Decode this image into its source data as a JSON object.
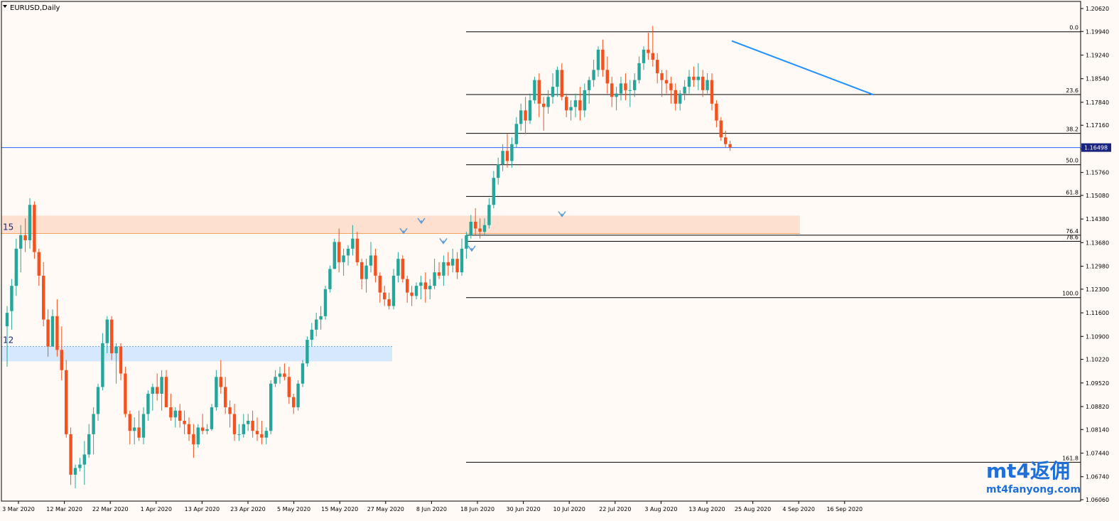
{
  "chart_title": "EURUSD,Daily",
  "watermark": {
    "brand": "mt4返佣",
    "url": "mt4fanyong.com"
  },
  "colors": {
    "background": "#fffaf5",
    "bull": "#26a69a",
    "bear": "#f4511e",
    "fib": "#000000",
    "trendline": "#1e90ff",
    "price_line": "#2962ff",
    "price_label_bg": "#1a237e",
    "zone_supply": "#fde0cf",
    "zone_demand": "#d6e8fb",
    "zone_supply_line": "#f4a460",
    "zone_demand_line": "#6fa8dc",
    "fractal": "#5b9bd5",
    "axis": "#000000"
  },
  "chart_data": {
    "type": "candlestick",
    "symbol": "EURUSD",
    "timeframe": "Daily",
    "ylim": [
      1.0604,
      1.2076
    ],
    "y_ticks": [
      "1.20620",
      "1.19940",
      "1.19240",
      "1.18540",
      "1.17840",
      "1.17160",
      "1.16460",
      "1.15760",
      "1.15080",
      "1.14380",
      "1.13680",
      "1.12980",
      "1.12300",
      "1.11600",
      "1.10900",
      "1.10220",
      "1.09520",
      "1.08820",
      "1.08140",
      "1.07440",
      "1.06740",
      "1.06060"
    ],
    "x_ticks": [
      "3 Mar 2020",
      "12 Mar 2020",
      "22 Mar 2020",
      "1 Apr 2020",
      "13 Apr 2020",
      "23 Apr 2020",
      "5 May 2020",
      "15 May 2020",
      "27 May 2020",
      "8 Jun 2020",
      "18 Jun 2020",
      "30 Jun 2020",
      "10 Jul 2020",
      "22 Jul 2020",
      "3 Aug 2020",
      "13 Aug 2020",
      "25 Aug 2020",
      "4 Sep 2020",
      "16 Sep 2020"
    ],
    "current_price": "1.16498",
    "candles": [
      [
        1.112,
        1.118,
        1.1,
        1.116
      ],
      [
        1.1165,
        1.126,
        1.111,
        1.124
      ],
      [
        1.124,
        1.138,
        1.121,
        1.135
      ],
      [
        1.135,
        1.142,
        1.128,
        1.139
      ],
      [
        1.139,
        1.144,
        1.134,
        1.1375
      ],
      [
        1.1375,
        1.15,
        1.135,
        1.148
      ],
      [
        1.148,
        1.149,
        1.132,
        1.134
      ],
      [
        1.134,
        1.135,
        1.124,
        1.127
      ],
      [
        1.127,
        1.131,
        1.112,
        1.114
      ],
      [
        1.114,
        1.117,
        1.103,
        1.106
      ],
      [
        1.106,
        1.117,
        1.106,
        1.115
      ],
      [
        1.115,
        1.12,
        1.103,
        1.105
      ],
      [
        1.105,
        1.112,
        1.096,
        1.099
      ],
      [
        1.099,
        1.102,
        1.079,
        1.08
      ],
      [
        1.08,
        1.082,
        1.065,
        1.068
      ],
      [
        1.068,
        1.071,
        1.064,
        1.07
      ],
      [
        1.07,
        1.073,
        1.069,
        1.071
      ],
      [
        1.071,
        1.078,
        1.065,
        1.074
      ],
      [
        1.074,
        1.083,
        1.073,
        1.08
      ],
      [
        1.08,
        1.088,
        1.074,
        1.086
      ],
      [
        1.086,
        1.095,
        1.084,
        1.094
      ],
      [
        1.094,
        1.11,
        1.093,
        1.107
      ],
      [
        1.107,
        1.115,
        1.104,
        1.114
      ],
      [
        1.114,
        1.115,
        1.102,
        1.104
      ],
      [
        1.104,
        1.107,
        1.095,
        1.106
      ],
      [
        1.106,
        1.107,
        1.096,
        1.098
      ],
      [
        1.098,
        1.1,
        1.085,
        1.086
      ],
      [
        1.086,
        1.087,
        1.077,
        1.081
      ],
      [
        1.081,
        1.085,
        1.077,
        1.082
      ],
      [
        1.082,
        1.087,
        1.078,
        1.079
      ],
      [
        1.079,
        1.088,
        1.077,
        1.086
      ],
      [
        1.086,
        1.093,
        1.084,
        1.092
      ],
      [
        1.092,
        1.095,
        1.087,
        1.094
      ],
      [
        1.094,
        1.098,
        1.09,
        1.092
      ],
      [
        1.092,
        1.099,
        1.087,
        1.097
      ],
      [
        1.097,
        1.099,
        1.088,
        1.088
      ],
      [
        1.088,
        1.092,
        1.084,
        1.085
      ],
      [
        1.085,
        1.088,
        1.082,
        1.087
      ],
      [
        1.087,
        1.089,
        1.082,
        1.084
      ],
      [
        1.084,
        1.087,
        1.08,
        1.083
      ],
      [
        1.083,
        1.085,
        1.078,
        1.08
      ],
      [
        1.08,
        1.083,
        1.073,
        1.077
      ],
      [
        1.077,
        1.083,
        1.076,
        1.082
      ],
      [
        1.082,
        1.086,
        1.08,
        1.081
      ],
      [
        1.081,
        1.083,
        1.08,
        1.0815
      ],
      [
        1.0815,
        1.089,
        1.081,
        1.088
      ],
      [
        1.088,
        1.099,
        1.087,
        1.097
      ],
      [
        1.097,
        1.102,
        1.092,
        1.094
      ],
      [
        1.094,
        1.097,
        1.086,
        1.088
      ],
      [
        1.088,
        1.09,
        1.082,
        1.086
      ],
      [
        1.086,
        1.089,
        1.078,
        1.08
      ],
      [
        1.08,
        1.083,
        1.078,
        1.08
      ],
      [
        1.08,
        1.086,
        1.079,
        1.083
      ],
      [
        1.083,
        1.086,
        1.081,
        1.084
      ],
      [
        1.084,
        1.087,
        1.079,
        1.081
      ],
      [
        1.081,
        1.085,
        1.078,
        1.08
      ],
      [
        1.08,
        1.084,
        1.077,
        1.079
      ],
      [
        1.079,
        1.082,
        1.077,
        1.081
      ],
      [
        1.081,
        1.096,
        1.08,
        1.095
      ],
      [
        1.095,
        1.099,
        1.094,
        1.097
      ],
      [
        1.097,
        1.1,
        1.095,
        1.098
      ],
      [
        1.098,
        1.101,
        1.096,
        1.097
      ],
      [
        1.097,
        1.1,
        1.089,
        1.091
      ],
      [
        1.091,
        1.092,
        1.086,
        1.088
      ],
      [
        1.088,
        1.096,
        1.087,
        1.095
      ],
      [
        1.095,
        1.102,
        1.094,
        1.101
      ],
      [
        1.101,
        1.109,
        1.1,
        1.108
      ],
      [
        1.108,
        1.113,
        1.106,
        1.111
      ],
      [
        1.111,
        1.116,
        1.109,
        1.114
      ],
      [
        1.114,
        1.118,
        1.111,
        1.115
      ],
      [
        1.115,
        1.124,
        1.114,
        1.123
      ],
      [
        1.123,
        1.13,
        1.122,
        1.129
      ],
      [
        1.129,
        1.138,
        1.129,
        1.137
      ],
      [
        1.137,
        1.141,
        1.128,
        1.131
      ],
      [
        1.131,
        1.135,
        1.127,
        1.133
      ],
      [
        1.133,
        1.136,
        1.13,
        1.135
      ],
      [
        1.135,
        1.142,
        1.133,
        1.138
      ],
      [
        1.138,
        1.14,
        1.13,
        1.131
      ],
      [
        1.131,
        1.132,
        1.123,
        1.126
      ],
      [
        1.126,
        1.132,
        1.122,
        1.13
      ],
      [
        1.13,
        1.137,
        1.128,
        1.133
      ],
      [
        1.133,
        1.135,
        1.125,
        1.127
      ],
      [
        1.127,
        1.128,
        1.119,
        1.122
      ],
      [
        1.122,
        1.124,
        1.118,
        1.12
      ],
      [
        1.12,
        1.122,
        1.117,
        1.118
      ],
      [
        1.118,
        1.129,
        1.117,
        1.127
      ],
      [
        1.127,
        1.134,
        1.125,
        1.132
      ],
      [
        1.132,
        1.133,
        1.125,
        1.126
      ],
      [
        1.126,
        1.127,
        1.119,
        1.122
      ],
      [
        1.122,
        1.124,
        1.118,
        1.121
      ],
      [
        1.121,
        1.125,
        1.12,
        1.124
      ],
      [
        1.124,
        1.127,
        1.12,
        1.125
      ],
      [
        1.125,
        1.128,
        1.119,
        1.123
      ],
      [
        1.123,
        1.126,
        1.12,
        1.124
      ],
      [
        1.124,
        1.132,
        1.123,
        1.128
      ],
      [
        1.128,
        1.131,
        1.126,
        1.127
      ],
      [
        1.127,
        1.133,
        1.124,
        1.131
      ],
      [
        1.131,
        1.134,
        1.127,
        1.13
      ],
      [
        1.13,
        1.135,
        1.128,
        1.132
      ],
      [
        1.132,
        1.134,
        1.126,
        1.128
      ],
      [
        1.128,
        1.138,
        1.127,
        1.135
      ],
      [
        1.135,
        1.14,
        1.132,
        1.139
      ],
      [
        1.139,
        1.145,
        1.138,
        1.143
      ],
      [
        1.143,
        1.147,
        1.139,
        1.141
      ],
      [
        1.141,
        1.144,
        1.138,
        1.14
      ],
      [
        1.14,
        1.144,
        1.139,
        1.142
      ],
      [
        1.142,
        1.15,
        1.141,
        1.148
      ],
      [
        1.148,
        1.158,
        1.147,
        1.156
      ],
      [
        1.156,
        1.162,
        1.154,
        1.16
      ],
      [
        1.16,
        1.166,
        1.158,
        1.164
      ],
      [
        1.164,
        1.169,
        1.159,
        1.161
      ],
      [
        1.161,
        1.168,
        1.159,
        1.166
      ],
      [
        1.166,
        1.174,
        1.165,
        1.172
      ],
      [
        1.172,
        1.178,
        1.17,
        1.176
      ],
      [
        1.176,
        1.18,
        1.169,
        1.173
      ],
      [
        1.173,
        1.181,
        1.172,
        1.179
      ],
      [
        1.179,
        1.186,
        1.178,
        1.185
      ],
      [
        1.185,
        1.187,
        1.174,
        1.178
      ],
      [
        1.178,
        1.18,
        1.17,
        1.177
      ],
      [
        1.177,
        1.182,
        1.175,
        1.18
      ],
      [
        1.18,
        1.187,
        1.178,
        1.183
      ],
      [
        1.183,
        1.189,
        1.18,
        1.188
      ],
      [
        1.188,
        1.19,
        1.179,
        1.18
      ],
      [
        1.18,
        1.181,
        1.174,
        1.176
      ],
      [
        1.176,
        1.179,
        1.173,
        1.177
      ],
      [
        1.177,
        1.181,
        1.174,
        1.179
      ],
      [
        1.179,
        1.183,
        1.173,
        1.176
      ],
      [
        1.176,
        1.184,
        1.174,
        1.182
      ],
      [
        1.182,
        1.186,
        1.178,
        1.185
      ],
      [
        1.185,
        1.191,
        1.183,
        1.188
      ],
      [
        1.188,
        1.195,
        1.186,
        1.194
      ],
      [
        1.194,
        1.197,
        1.186,
        1.188
      ],
      [
        1.188,
        1.192,
        1.181,
        1.184
      ],
      [
        1.184,
        1.186,
        1.177,
        1.18
      ],
      [
        1.18,
        1.183,
        1.176,
        1.181
      ],
      [
        1.181,
        1.186,
        1.179,
        1.184
      ],
      [
        1.184,
        1.187,
        1.179,
        1.182
      ],
      [
        1.182,
        1.185,
        1.177,
        1.182
      ],
      [
        1.182,
        1.187,
        1.18,
        1.185
      ],
      [
        1.185,
        1.192,
        1.184,
        1.19
      ],
      [
        1.19,
        1.195,
        1.188,
        1.194
      ],
      [
        1.194,
        1.199,
        1.191,
        1.193
      ],
      [
        1.193,
        1.201,
        1.189,
        1.191
      ],
      [
        1.191,
        1.193,
        1.184,
        1.187
      ],
      [
        1.187,
        1.188,
        1.18,
        1.185
      ],
      [
        1.185,
        1.188,
        1.181,
        1.184
      ],
      [
        1.184,
        1.186,
        1.178,
        1.182
      ],
      [
        1.182,
        1.184,
        1.176,
        1.178
      ],
      [
        1.178,
        1.182,
        1.176,
        1.181
      ],
      [
        1.181,
        1.185,
        1.179,
        1.183
      ],
      [
        1.183,
        1.188,
        1.181,
        1.186
      ],
      [
        1.186,
        1.189,
        1.183,
        1.185
      ],
      [
        1.185,
        1.19,
        1.182,
        1.186
      ],
      [
        1.186,
        1.188,
        1.18,
        1.182
      ],
      [
        1.182,
        1.187,
        1.181,
        1.185
      ],
      [
        1.185,
        1.187,
        1.176,
        1.178
      ],
      [
        1.178,
        1.179,
        1.171,
        1.173
      ],
      [
        1.173,
        1.174,
        1.167,
        1.168
      ],
      [
        1.168,
        1.17,
        1.165,
        1.166
      ],
      [
        1.166,
        1.167,
        1.164,
        1.16498
      ]
    ],
    "fibonacci": [
      {
        "label": "0.0",
        "price": 1.1993
      },
      {
        "label": "23.6",
        "price": 1.1807
      },
      {
        "label": "38.2",
        "price": 1.1692
      },
      {
        "label": "50.0",
        "price": 1.1599
      },
      {
        "label": "61.8",
        "price": 1.1505
      },
      {
        "label": "76.4",
        "price": 1.139
      },
      {
        "label": "78.6",
        "price": 1.1372
      },
      {
        "label": "100.0",
        "price": 1.1205
      },
      {
        "label": "161.8",
        "price": 1.0717
      }
    ],
    "zones": [
      {
        "label": "15",
        "top": 1.1448,
        "bottom": 1.1395,
        "line": 1.1395
      },
      {
        "label": "12",
        "top": 1.106,
        "bottom": 1.1016,
        "line": 1.106
      }
    ],
    "trendline": {
      "from_price": 1.1966,
      "to_price": 1.1806
    },
    "fractals": [
      1.1402,
      1.1432,
      1.1372,
      1.135,
      1.1452
    ]
  }
}
